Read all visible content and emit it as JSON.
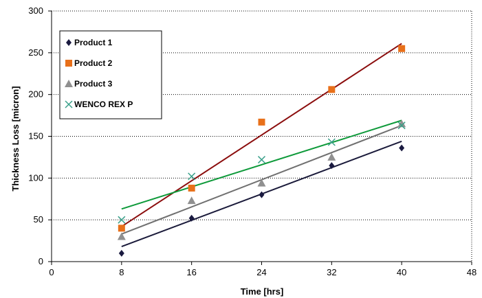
{
  "chart_data": {
    "type": "scatter",
    "title": "",
    "xlabel": "Time [hrs]",
    "ylabel": "Thickness Loss [micron]",
    "xlim": [
      0,
      48
    ],
    "ylim": [
      0,
      300
    ],
    "x_ticks": [
      0,
      8,
      16,
      24,
      32,
      40,
      48
    ],
    "y_ticks": [
      0,
      50,
      100,
      150,
      200,
      250,
      300
    ],
    "grid": "horizontal dashed",
    "legend_position": "top-left",
    "series": [
      {
        "name": "Product 1",
        "marker": "diamond",
        "color": "#1a1a40",
        "x": [
          8,
          16,
          24,
          32,
          40
        ],
        "y": [
          10,
          52,
          80,
          115,
          136
        ],
        "trendline": {
          "x": [
            8,
            40
          ],
          "y": [
            18,
            144
          ],
          "color": "#1a1a3a"
        }
      },
      {
        "name": "Product 2",
        "marker": "square",
        "color": "#e8701a",
        "x": [
          8,
          16,
          24,
          32,
          40
        ],
        "y": [
          40,
          88,
          167,
          206,
          255
        ],
        "trendline": {
          "x": [
            8,
            40
          ],
          "y": [
            42,
            261
          ],
          "color": "#8b0d0d"
        }
      },
      {
        "name": "Product 3",
        "marker": "triangle",
        "color": "#909090",
        "x": [
          8,
          16,
          24,
          32,
          40
        ],
        "y": [
          30,
          73,
          94,
          125,
          165
        ],
        "trendline": {
          "x": [
            8,
            40
          ],
          "y": [
            33,
            163
          ],
          "color": "#707070"
        }
      },
      {
        "name": "WENCO REX P",
        "marker": "x",
        "color": "#3aa08a",
        "x": [
          8,
          16,
          24,
          32,
          40
        ],
        "y": [
          50,
          102,
          122,
          143,
          163
        ],
        "trendline": {
          "x": [
            8,
            40
          ],
          "y": [
            63,
            169
          ],
          "color": "#0e9a3a"
        }
      }
    ]
  }
}
